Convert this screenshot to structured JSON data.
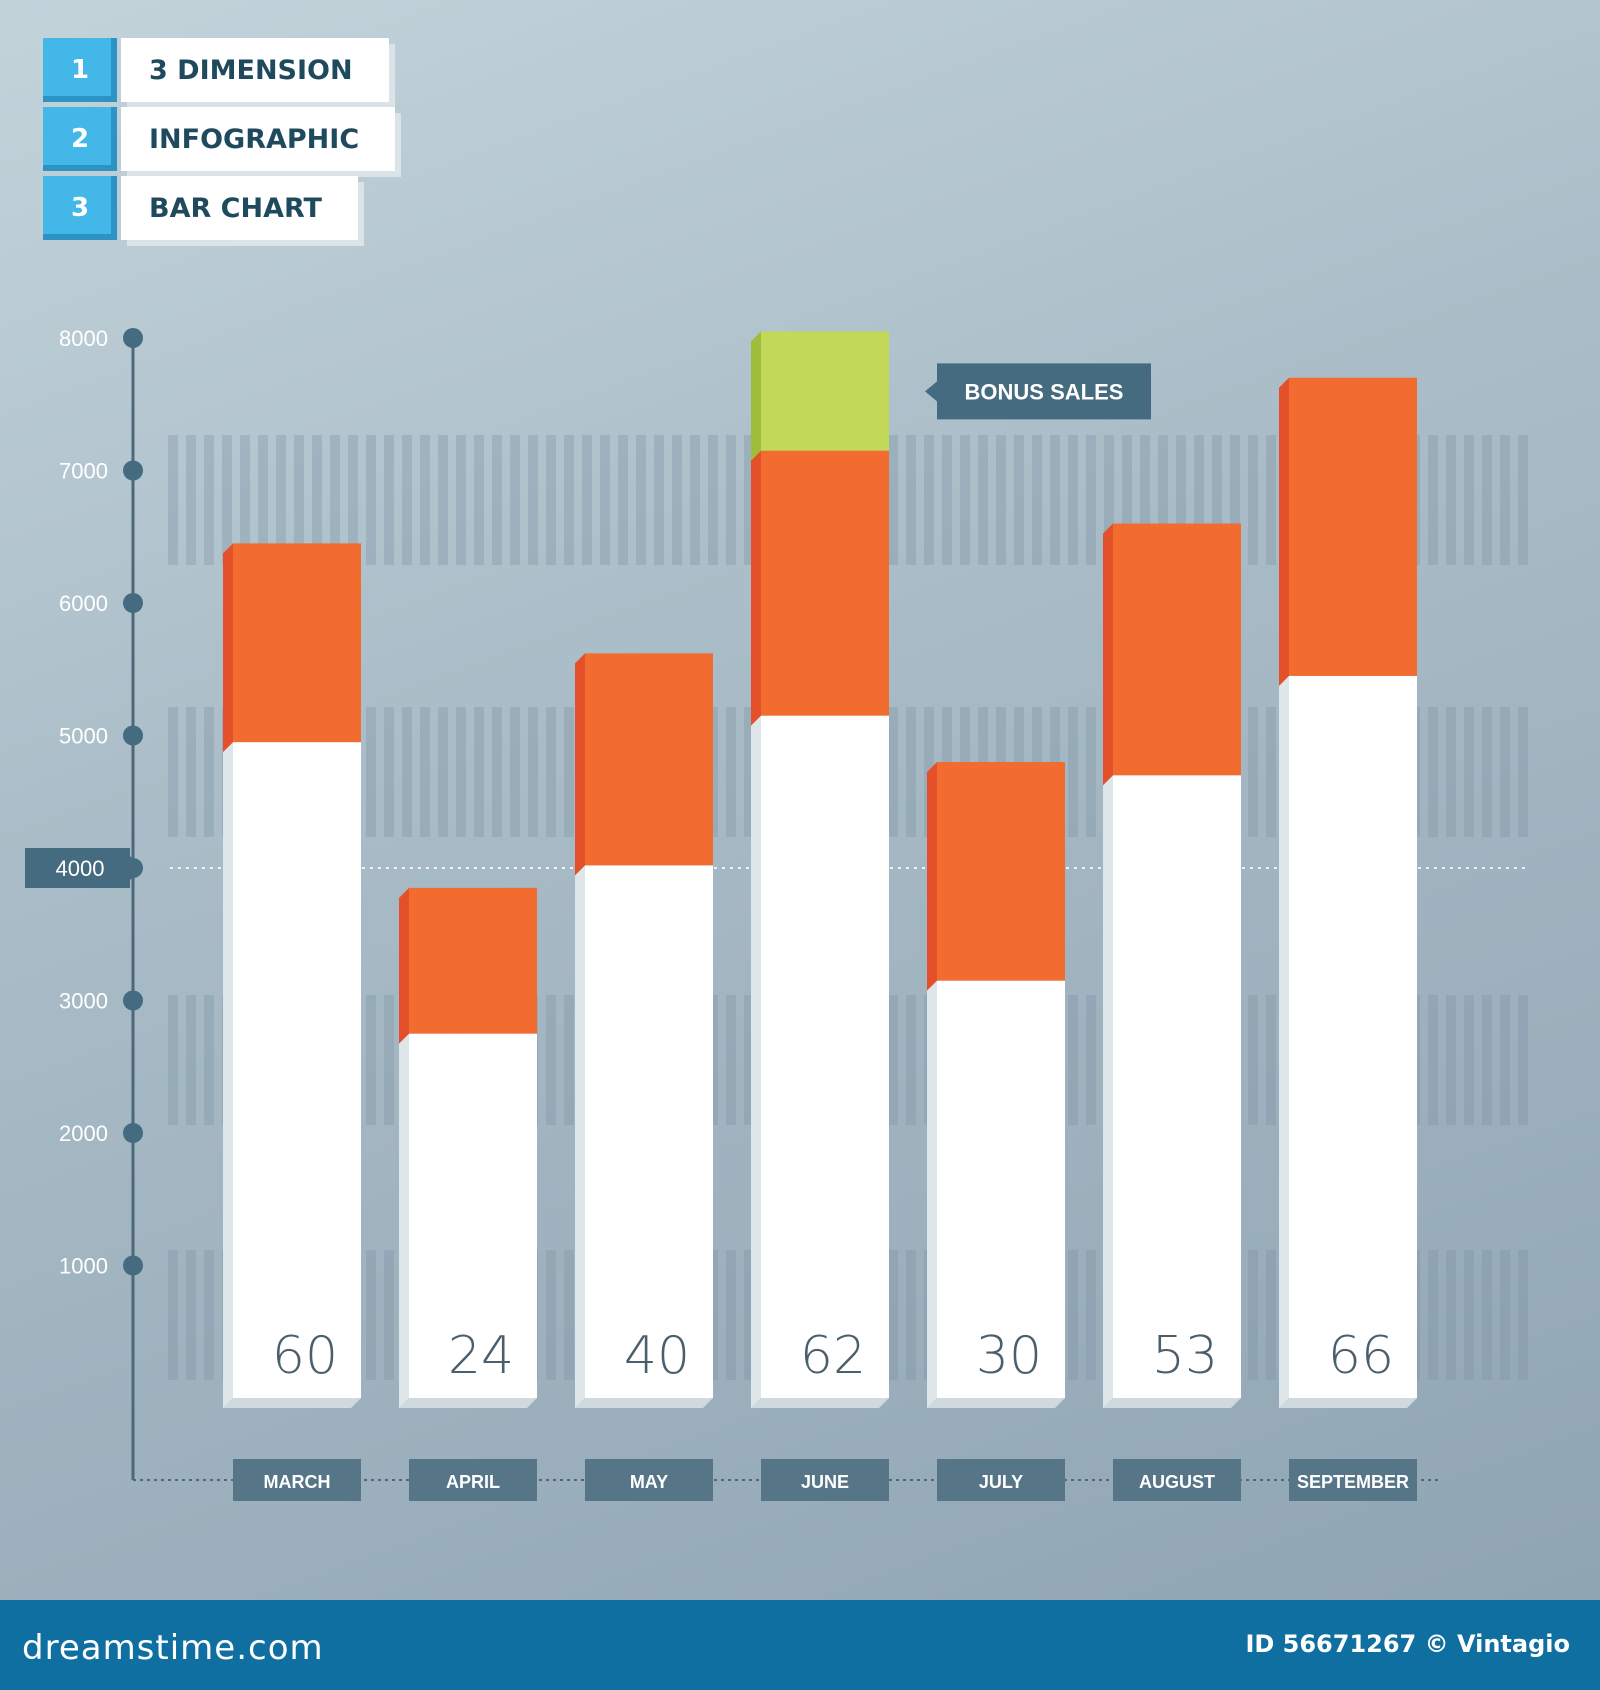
{
  "legend": [
    {
      "number": "1",
      "label": "3 DIMENSION"
    },
    {
      "number": "2",
      "label": "INFOGRAPHIC"
    },
    {
      "number": "3",
      "label": "BAR CHART"
    }
  ],
  "chart_data": {
    "type": "bar",
    "stacked": true,
    "title": "",
    "xlabel": "",
    "ylabel": "",
    "ylim": [
      0,
      8000
    ],
    "y_ticks": [
      1000,
      2000,
      3000,
      4000,
      5000,
      6000,
      7000,
      8000
    ],
    "highlighted_tick": 4000,
    "categories": [
      "MARCH",
      "APRIL",
      "MAY",
      "JUNE",
      "JULY",
      "AUGUST",
      "SEPTEMBER"
    ],
    "bar_labels": [
      "60",
      "24",
      "40",
      "62",
      "30",
      "53",
      "66"
    ],
    "series": [
      {
        "color": "#ffffff",
        "values": [
          4950,
          2750,
          4020,
          5150,
          3150,
          4700,
          5450
        ]
      },
      {
        "color": "#f26b2f",
        "values": [
          1500,
          1100,
          1600,
          2000,
          1650,
          1900,
          2250
        ]
      },
      {
        "name": "BONUS SALES",
        "color": "#c2d859",
        "values": [
          0,
          0,
          0,
          900,
          0,
          0,
          0
        ]
      }
    ],
    "annotation": "BONUS SALES",
    "legend": "none",
    "grid": false
  },
  "watermark": {
    "brand": "dreamstime.com",
    "credit": "ID 56671267 © Vintagio"
  }
}
